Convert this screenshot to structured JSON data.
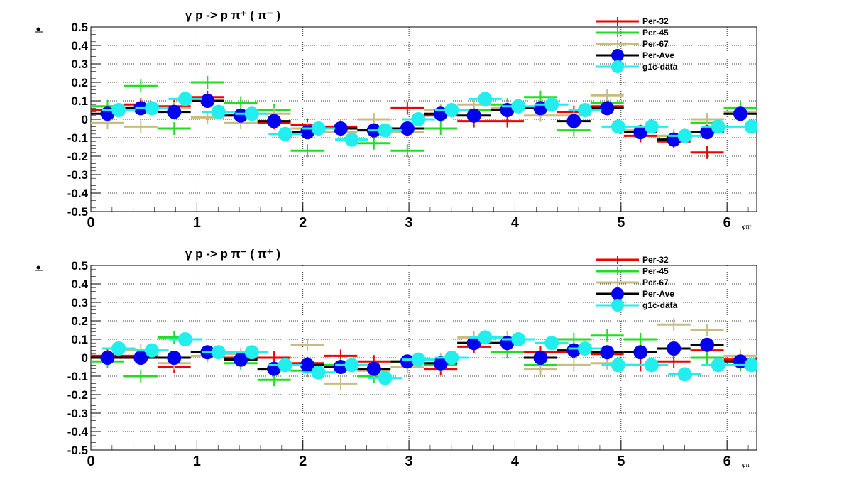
{
  "chart_data": [
    {
      "type": "scatter",
      "title": "γ p -> p π⁺ ( π⁻ )",
      "xlabel": "φ_{π⁺}",
      "ylabel": "",
      "xlim": [
        0,
        6.28
      ],
      "ylim": [
        -0.5,
        0.5
      ],
      "xticks": [
        "0",
        "1",
        "2",
        "3",
        "4",
        "5",
        "6"
      ],
      "yticks": [
        "-0.5",
        "-0.4",
        "-0.3",
        "-0.2",
        "-0.1",
        "0",
        "0.1",
        "0.2",
        "0.3",
        "0.4",
        "0.5"
      ],
      "grid": true,
      "legend_position": "top-right",
      "series": [
        {
          "name": "Per-32",
          "color": "#ee0000",
          "marker": "errorbar",
          "x": [
            0.157,
            0.471,
            0.785,
            1.1,
            1.414,
            1.728,
            2.042,
            2.356,
            2.67,
            2.985,
            3.299,
            3.613,
            3.927,
            4.241,
            4.555,
            4.869,
            5.184,
            5.498,
            5.812,
            6.126
          ],
          "y": [
            0.05,
            0.08,
            0.07,
            0.12,
            0.02,
            -0.02,
            -0.03,
            -0.04,
            -0.06,
            0.06,
            0.02,
            -0.01,
            -0.01,
            0.06,
            0.04,
            0.07,
            -0.09,
            -0.12,
            -0.18,
            0.04
          ]
        },
        {
          "name": "Per-45",
          "color": "#22dd22",
          "marker": "errorbar",
          "x": [
            0.157,
            0.471,
            0.785,
            1.1,
            1.414,
            1.728,
            2.042,
            2.356,
            2.67,
            2.985,
            3.299,
            3.613,
            3.927,
            4.241,
            4.555,
            4.869,
            5.184,
            5.498,
            5.812,
            6.126
          ],
          "y": [
            0.07,
            0.18,
            -0.05,
            0.2,
            0.09,
            0.05,
            -0.17,
            -0.05,
            -0.13,
            -0.17,
            -0.05,
            0.05,
            0.08,
            0.12,
            -0.06,
            0.09,
            -0.07,
            -0.09,
            -0.02,
            0.06
          ]
        },
        {
          "name": "Per-67",
          "color": "#c8bc80",
          "marker": "errorbar",
          "x": [
            0.157,
            0.471,
            0.785,
            1.1,
            1.414,
            1.728,
            2.042,
            2.356,
            2.67,
            2.985,
            3.299,
            3.613,
            3.927,
            4.241,
            4.555,
            4.869,
            5.184,
            5.498,
            5.812,
            6.126
          ],
          "y": [
            -0.02,
            -0.04,
            0.06,
            0.01,
            -0.02,
            0.03,
            -0.05,
            -0.07,
            0.0,
            -0.07,
            0.05,
            0.08,
            0.06,
            0.02,
            0.02,
            0.13,
            -0.06,
            -0.09,
            0.0,
            0.04
          ]
        },
        {
          "name": "Per-Ave",
          "color": "#0000ee",
          "marker": "circle",
          "x": [
            0.157,
            0.471,
            0.785,
            1.1,
            1.414,
            1.728,
            2.042,
            2.356,
            2.67,
            2.985,
            3.299,
            3.613,
            3.927,
            4.241,
            4.555,
            4.869,
            5.184,
            5.498,
            5.812,
            6.126
          ],
          "y": [
            0.03,
            0.06,
            0.04,
            0.1,
            0.02,
            -0.01,
            -0.07,
            -0.05,
            -0.06,
            -0.05,
            0.03,
            0.02,
            0.05,
            0.06,
            -0.01,
            0.06,
            -0.07,
            -0.11,
            -0.07,
            0.03
          ]
        },
        {
          "name": "g1c-data",
          "color": "#22eeee",
          "marker": "circle",
          "x": [
            0.262,
            0.576,
            0.89,
            1.204,
            1.518,
            1.833,
            2.147,
            2.461,
            2.775,
            3.089,
            3.403,
            3.718,
            4.032,
            4.346,
            4.66,
            4.974,
            5.288,
            5.602,
            5.917,
            6.231
          ],
          "y": [
            0.05,
            0.06,
            0.11,
            0.04,
            0.03,
            -0.08,
            -0.05,
            -0.11,
            -0.06,
            0.0,
            0.05,
            0.11,
            0.07,
            0.08,
            0.05,
            -0.04,
            -0.04,
            -0.09,
            -0.04,
            -0.04
          ]
        }
      ]
    },
    {
      "type": "scatter",
      "title": "γ p -> p π⁻ ( π⁺ )",
      "xlabel": "φ_{π⁻}",
      "ylabel": "",
      "xlim": [
        0,
        6.28
      ],
      "ylim": [
        -0.5,
        0.5
      ],
      "xticks": [
        "0",
        "1",
        "2",
        "3",
        "4",
        "5",
        "6"
      ],
      "yticks": [
        "-0.5",
        "-0.4",
        "-0.3",
        "-0.2",
        "-0.1",
        "0",
        "0.1",
        "0.2",
        "0.3",
        "0.4",
        "0.5"
      ],
      "grid": true,
      "legend_position": "top-right",
      "series": [
        {
          "name": "Per-32",
          "color": "#ee0000",
          "marker": "errorbar",
          "x": [
            0.157,
            0.471,
            0.785,
            1.1,
            1.414,
            1.728,
            2.042,
            2.356,
            2.67,
            2.985,
            3.299,
            3.613,
            3.927,
            4.241,
            4.555,
            4.869,
            5.184,
            5.498,
            5.812,
            6.126
          ],
          "y": [
            0.01,
            0.01,
            -0.05,
            0.03,
            0.0,
            0.0,
            -0.03,
            0.01,
            -0.02,
            -0.02,
            -0.06,
            0.06,
            0.08,
            0.03,
            0.03,
            0.02,
            -0.04,
            -0.02,
            0.04,
            -0.01
          ]
        },
        {
          "name": "Per-45",
          "color": "#22dd22",
          "marker": "errorbar",
          "x": [
            0.157,
            0.471,
            0.785,
            1.1,
            1.414,
            1.728,
            2.042,
            2.356,
            2.67,
            2.985,
            3.299,
            3.613,
            3.927,
            4.241,
            4.555,
            4.869,
            5.184,
            5.498,
            5.812,
            6.126
          ],
          "y": [
            -0.02,
            -0.1,
            0.11,
            0.03,
            -0.03,
            -0.12,
            -0.07,
            -0.04,
            -0.1,
            -0.02,
            -0.04,
            0.08,
            0.03,
            -0.04,
            0.1,
            0.12,
            0.1,
            0.05,
            0.0,
            -0.04
          ]
        },
        {
          "name": "Per-67",
          "color": "#c8bc80",
          "marker": "errorbar",
          "x": [
            0.157,
            0.471,
            0.785,
            1.1,
            1.414,
            1.728,
            2.042,
            2.356,
            2.67,
            2.985,
            3.299,
            3.613,
            3.927,
            4.241,
            4.555,
            4.869,
            5.184,
            5.498,
            5.812,
            6.126
          ],
          "y": [
            0.0,
            0.04,
            -0.03,
            0.01,
            0.02,
            -0.06,
            0.07,
            -0.14,
            -0.07,
            -0.05,
            -0.01,
            0.11,
            0.11,
            -0.06,
            -0.04,
            -0.03,
            0.03,
            0.18,
            0.15,
            0.01
          ]
        },
        {
          "name": "Per-Ave",
          "color": "#0000ee",
          "marker": "circle",
          "x": [
            0.157,
            0.471,
            0.785,
            1.1,
            1.414,
            1.728,
            2.042,
            2.356,
            2.67,
            2.985,
            3.299,
            3.613,
            3.927,
            4.241,
            4.555,
            4.869,
            5.184,
            5.498,
            5.812,
            6.126
          ],
          "y": [
            0.0,
            0.0,
            0.0,
            0.03,
            -0.01,
            -0.06,
            -0.04,
            -0.05,
            -0.06,
            -0.02,
            -0.03,
            0.08,
            0.08,
            0.0,
            0.04,
            0.03,
            0.03,
            0.05,
            0.07,
            -0.02
          ]
        },
        {
          "name": "g1c-data",
          "color": "#22eeee",
          "marker": "circle",
          "x": [
            0.262,
            0.576,
            0.89,
            1.204,
            1.518,
            1.833,
            2.147,
            2.461,
            2.775,
            3.089,
            3.403,
            3.718,
            4.032,
            4.346,
            4.66,
            4.974,
            5.288,
            5.602,
            5.917,
            6.231
          ],
          "y": [
            0.05,
            0.04,
            0.1,
            0.03,
            0.03,
            -0.04,
            -0.08,
            -0.04,
            -0.11,
            -0.01,
            0.0,
            0.11,
            0.1,
            0.08,
            0.05,
            -0.04,
            -0.04,
            -0.09,
            -0.04,
            -0.04
          ]
        }
      ]
    }
  ]
}
